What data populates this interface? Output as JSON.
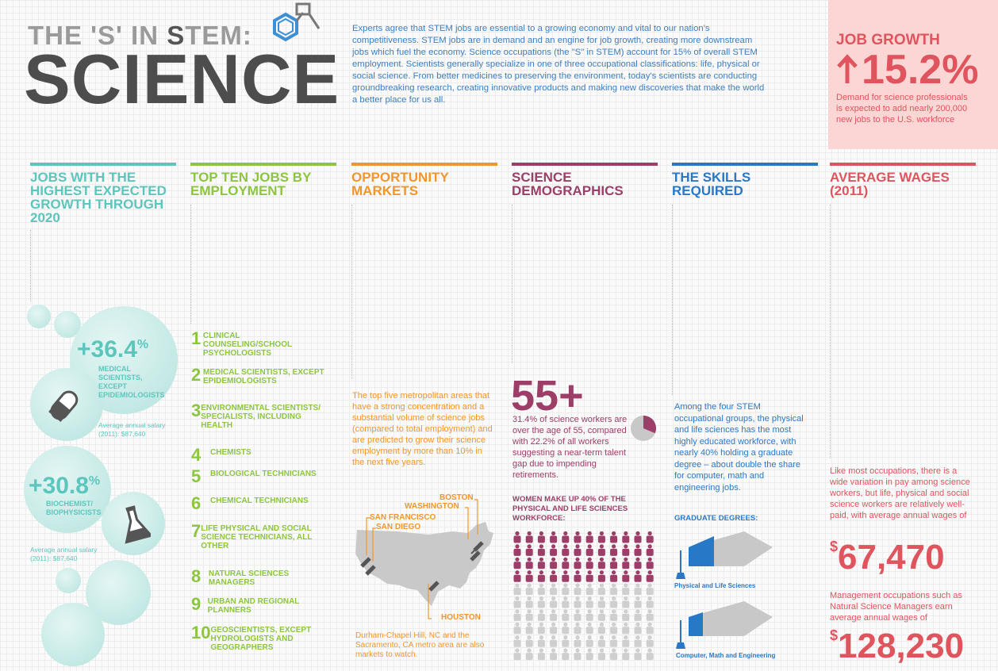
{
  "header": {
    "kicker_pre": "THE 'S' IN ",
    "kicker_s": "S",
    "kicker_post": "TEM:",
    "title": "SCIENCE",
    "intro": "Experts agree that STEM jobs are essential to a growing economy and vital to our nation's competitiveness. STEM jobs are in demand and an engine for job growth, creating more downstream jobs which fuel the economy. Science occupations (the \"S\" in STEM) account for 15% of overall STEM employment. Scientists generally specialize in one of three occupational classifications: life, physical or social science. From better medicines to preserving the environment, today's scientists are conducting groundbreaking research, creating innovative products and making new discoveries that make the world a better place for us all."
  },
  "job_growth": {
    "label": "JOB GROWTH",
    "value": "15.2%",
    "description": "Demand for science professionals is expected to add nearly 200,000 new jobs to the U.S. workforce"
  },
  "columns": [
    {
      "title": "JOBS WITH THE HIGHEST EXPECTED GROWTH THROUGH 2020",
      "color": "#5cc6bd"
    },
    {
      "title": "TOP TEN JOBS BY EMPLOYMENT",
      "color": "#8cc63f"
    },
    {
      "title": "OPPORTUNITY MARKETS",
      "color": "#f0962d"
    },
    {
      "title": "SCIENCE DEMOGRAPHICS",
      "color": "#9c3e67"
    },
    {
      "title": "THE SKILLS REQUIRED",
      "color": "#2878c8"
    },
    {
      "title": "AVERAGE WAGES (2011)",
      "color": "#e0545e"
    }
  ],
  "growth": {
    "item1": {
      "value": "+36.4",
      "pct": "%",
      "label": "MEDICAL SCIENTISTS, EXCEPT EPIDEMIOLOGISTS",
      "salary": "Average annual salary (2011): $87,640"
    },
    "item2": {
      "value": "+30.8",
      "pct": "%",
      "label": "BIOCHEMIST/ BIOPHYSICISTS",
      "salary": "Average annual salary (2011): $87,640"
    }
  },
  "top_jobs": [
    {
      "n": "1",
      "label": "CLINICAL COUNSELING/SCHOOL PSYCHOLOGISTS"
    },
    {
      "n": "2",
      "label": "MEDICAL SCIENTISTS, EXCEPT EPIDEMIOLOGISTS"
    },
    {
      "n": "3",
      "label": "ENVIRONMENTAL SCIENTISTS/ SPECIALISTS, INCLUDING HEALTH"
    },
    {
      "n": "4",
      "label": "CHEMISTS"
    },
    {
      "n": "5",
      "label": "BIOLOGICAL TECHNICIANS"
    },
    {
      "n": "6",
      "label": "CHEMICAL TECHNICIANS"
    },
    {
      "n": "7",
      "label": "LIFE PHYSICAL AND SOCIAL SCIENCE TECHNICIANS, ALL OTHER"
    },
    {
      "n": "8",
      "label": "NATURAL SCIENCES MANAGERS"
    },
    {
      "n": "9",
      "label": "URBAN AND REGIONAL PLANNERS"
    },
    {
      "n": "10",
      "label": "GEOSCIENTISTS, EXCEPT HYDROLOGISTS AND GEOGRAPHERS"
    }
  ],
  "markets": {
    "text": "The top five metropolitan areas that have a strong concentration and a substantial volume of science jobs (compared to total employment) and are predicted to grow their science employment by more than 10% in the next five years.",
    "cities": [
      "BOSTON",
      "WASHINGTON",
      "SAN FRANCISCO",
      "SAN DIEGO",
      "HOUSTON"
    ],
    "footnote": "Durham-Chapel Hill, NC and the Sacramento, CA metro area are also markets to watch."
  },
  "demographics": {
    "big": "55+",
    "text": "31.4% of science workers are over the age of 55, compared with 22.2% of all workers suggesting a near-term talent gap due to impending retirements.",
    "share_over_55": 0.314,
    "women_label": "WOMEN MAKE UP 40% OF THE PHYSICAL AND LIFE SCIENCES WORKFORCE:",
    "women_share": 0.4
  },
  "skills": {
    "text": "Among the four STEM occupational groups, the physical and life sciences has the most highly educated workforce, with nearly 40% holding a graduate degree – about double the share for computer, math and engineering jobs.",
    "grad_label": "GRADUATE DEGREES:",
    "caps": [
      {
        "label": "Physical and Life Sciences",
        "share": 0.4
      },
      {
        "label": "Computer, Math and Engineering",
        "share": 0.2
      }
    ]
  },
  "wages": {
    "text1": "Like most occupations, there is a wide variation in pay among science workers, but life, physical and social science workers are relatively well-paid, with average annual wages of",
    "currency": "$",
    "value1": "67,470",
    "text2": "Management occupations such as Natural Science Managers earn average annual wages of",
    "value2": "128,230"
  }
}
